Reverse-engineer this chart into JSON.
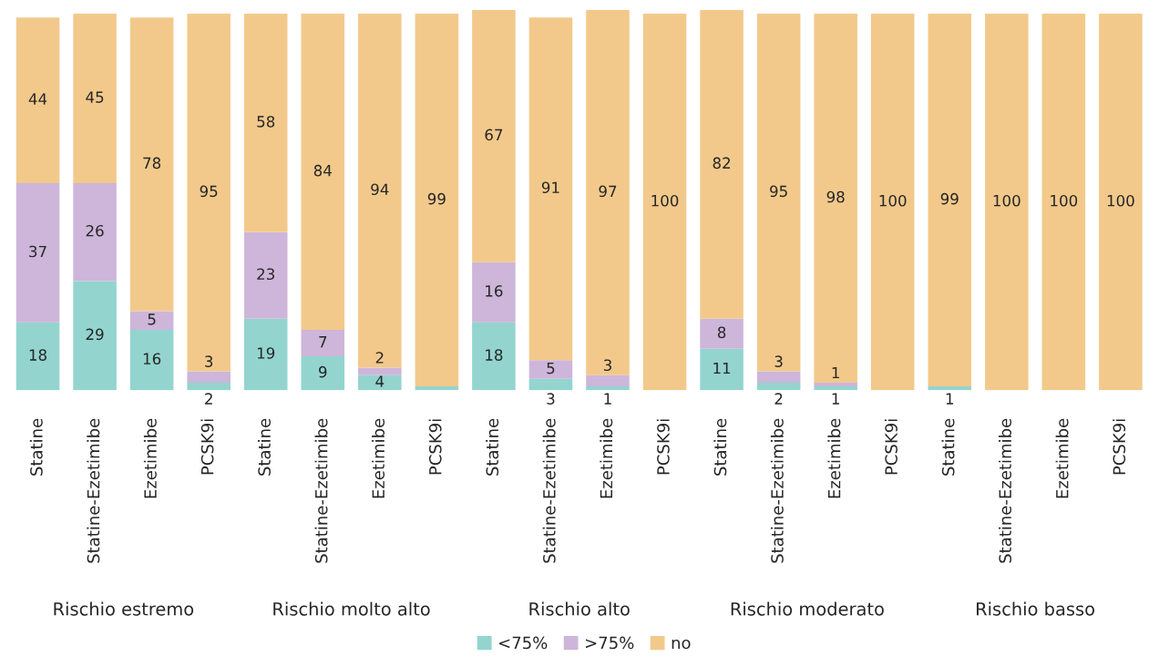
{
  "chart_data": {
    "type": "bar",
    "stacked": true,
    "categories": [
      "Statine",
      "Statine-Ezetimibe",
      "Ezetimibe",
      "PCSK9i",
      "Statine",
      "Statine-Ezetimibe",
      "Ezetimibe",
      "PCSK9i",
      "Statine",
      "Statine-Ezetimibe",
      "Ezetimibe",
      "PCSK9i",
      "Statine",
      "Statine-Ezetimibe",
      "Ezetimibe",
      "PCSK9i",
      "Statine",
      "Statine-Ezetimibe",
      "Ezetimibe",
      "PCSK9i"
    ],
    "series": [
      {
        "name": "<75%",
        "color": "#93d4cf",
        "values": [
          18,
          29,
          16,
          2,
          19,
          9,
          4,
          1,
          18,
          3,
          1,
          0,
          11,
          2,
          1,
          0,
          1,
          0,
          0,
          0
        ],
        "value_labels": [
          "18",
          "29",
          "16",
          "2",
          "19",
          "9",
          "4",
          null,
          "18",
          "3",
          "1",
          null,
          "11",
          "2",
          "1",
          null,
          "1",
          null,
          null,
          null
        ]
      },
      {
        "name": ">75%",
        "color": "#cdb6d9",
        "values": [
          37,
          26,
          5,
          3,
          23,
          7,
          2,
          0,
          16,
          5,
          3,
          0,
          8,
          3,
          1,
          0,
          0,
          0,
          0,
          0
        ],
        "value_labels": [
          "37",
          "26",
          "5",
          "3",
          "23",
          "7",
          "2",
          null,
          "16",
          "5",
          "3",
          null,
          "8",
          "3",
          "1",
          null,
          null,
          null,
          null,
          null
        ]
      },
      {
        "name": "no",
        "color": "#f2c98b",
        "values": [
          44,
          45,
          78,
          95,
          58,
          84,
          94,
          99,
          67,
          91,
          97,
          100,
          82,
          95,
          98,
          100,
          99,
          100,
          100,
          100
        ],
        "value_labels": [
          "44",
          "45",
          "78",
          "95",
          "58",
          "84",
          "94",
          "99",
          "67",
          "91",
          "97",
          "100",
          "82",
          "95",
          "98",
          "100",
          "99",
          "100",
          "100",
          "100"
        ]
      }
    ],
    "annotations": [
      "Rischio estremo",
      "Rischio molto alto",
      "Rischio alto",
      "Rischio moderato",
      "Rischio basso"
    ],
    "legend": "bottom",
    "grid": false
  }
}
